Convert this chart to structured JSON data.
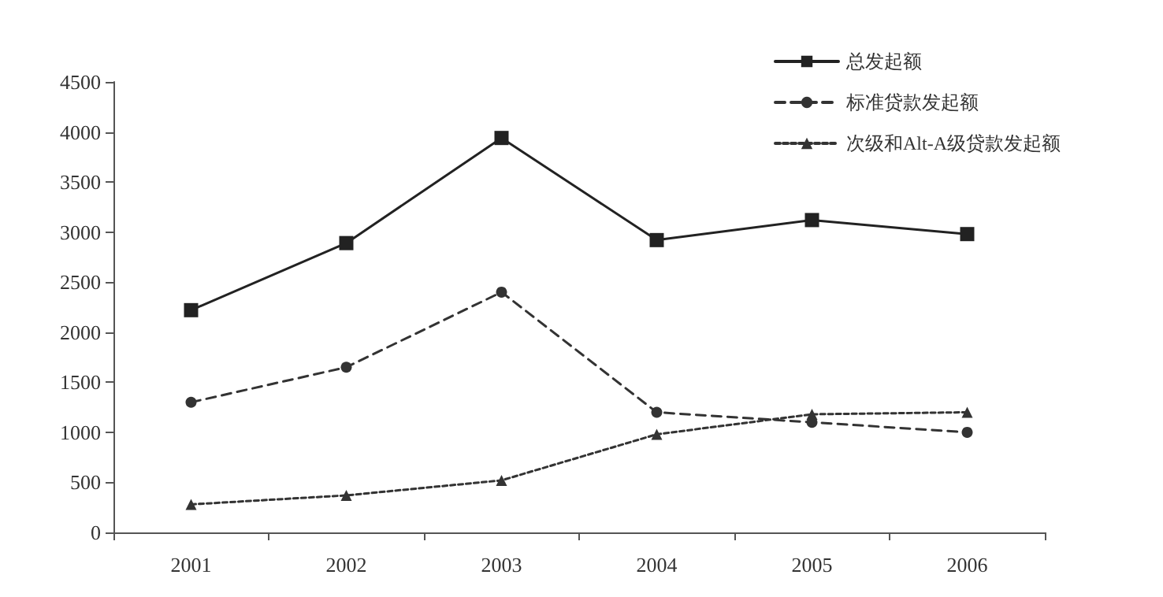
{
  "chart_data": {
    "type": "line",
    "categories": [
      "2001",
      "2002",
      "2003",
      "2004",
      "2005",
      "2006"
    ],
    "series": [
      {
        "name": "总发起额",
        "color": "#222222",
        "marker": "square",
        "line_style": "solid",
        "values": [
          2220,
          2890,
          3940,
          2920,
          3120,
          2980
        ]
      },
      {
        "name": "标准贷款发起额",
        "color": "#333333",
        "marker": "circle",
        "line_style": "dashed",
        "values": [
          1300,
          1650,
          2400,
          1200,
          1100,
          1000
        ]
      },
      {
        "name": "次级和Alt-A级贷款发起额",
        "color": "#333333",
        "marker": "triangle",
        "line_style": "dotted",
        "values": [
          280,
          370,
          520,
          980,
          1180,
          1200
        ]
      }
    ],
    "ylim": [
      0,
      4500
    ],
    "yticks": [
      0,
      500,
      1000,
      1500,
      2000,
      2500,
      3000,
      3500,
      4000,
      4500
    ],
    "grid": false,
    "legend": "top right"
  }
}
